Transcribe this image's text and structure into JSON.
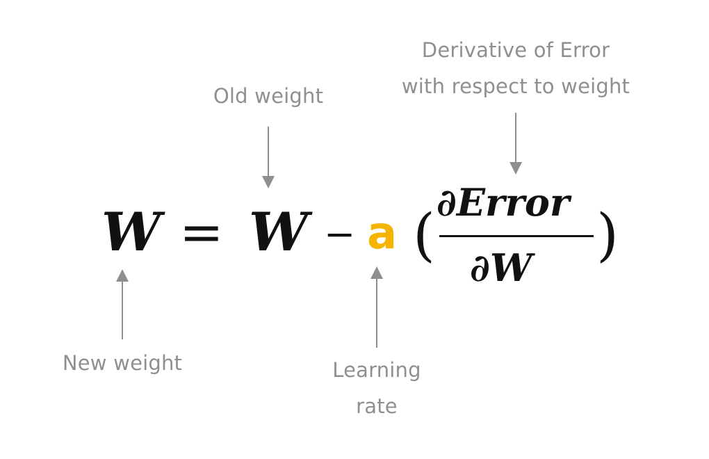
{
  "equation": {
    "new_weight_symbol": "W",
    "equals": "=",
    "old_weight_symbol": "W",
    "minus": "−",
    "learning_rate_symbol": "a",
    "open_paren": "(",
    "numerator": "∂Error",
    "denominator": "∂W",
    "close_paren": ")"
  },
  "labels": {
    "old_weight": "Old weight",
    "derivative_line1": "Derivative of Error",
    "derivative_line2": "with respect to weight",
    "new_weight": "New weight",
    "learning_rate_line1": "Learning",
    "learning_rate_line2": "rate"
  },
  "colors": {
    "equation_text": "#111111",
    "learning_rate": "#f5b400",
    "annotation_text": "#8f8f8f",
    "arrow": "#8f8f8f"
  }
}
